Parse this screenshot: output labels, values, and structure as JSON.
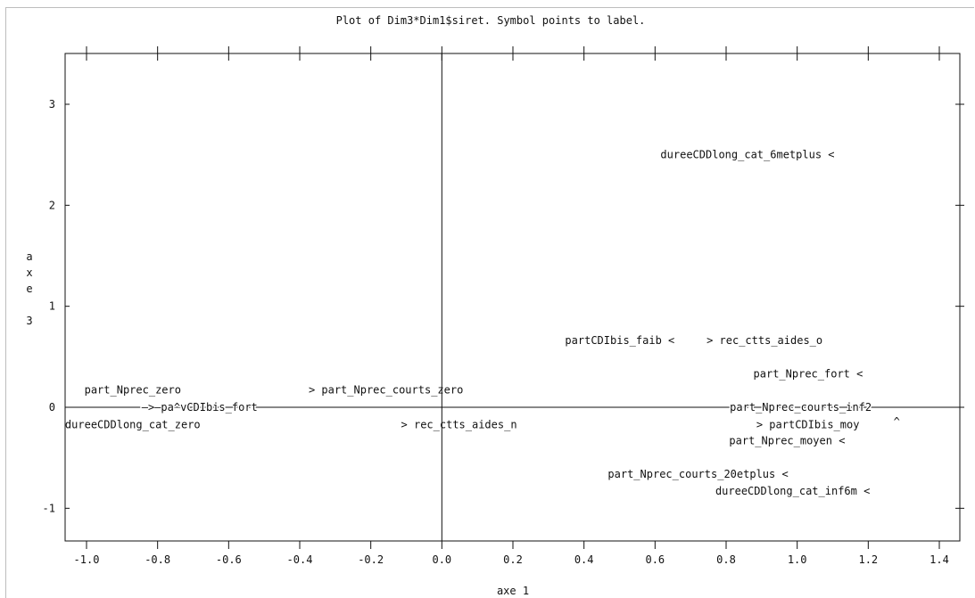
{
  "chart_data": {
    "type": "scatter",
    "title": "Plot of Dim3*Dim1$siret.  Symbol points to label.",
    "xlabel": "axe 1",
    "ylabel": "axe 3",
    "xlim": [
      -1.05,
      1.45
    ],
    "ylim": [
      -1.35,
      3.5
    ],
    "x_ticks": [
      "-1.0",
      "-0.8",
      "-0.6",
      "-0.4",
      "-0.2",
      "0.0",
      "0.2",
      "0.4",
      "0.6",
      "0.8",
      "1.0",
      "1.2",
      "1.4"
    ],
    "y_ticks": [
      "-1",
      "0",
      "1",
      "2",
      "3"
    ],
    "points": [
      {
        "label": "dureeCDDlong_cat_6metplus <",
        "x": 1.1,
        "y": 2.5
      },
      {
        "label": "partCDIbis_faib <",
        "x": 0.65,
        "y": 0.66
      },
      {
        "label": "> rec_ctts_aides_o",
        "x": 0.75,
        "y": 0.66
      },
      {
        "label": "part_Nprec_fort <",
        "x": 1.18,
        "y": 0.33
      },
      {
        "label": "part_Nprec_zero",
        "x": -0.87,
        "y": 0.17
      },
      {
        "label": "> part_Nprec_courts_zero",
        "x": -0.37,
        "y": 0.17
      },
      {
        "label": "—>—pa^vCDIbis_fort",
        "x": -0.84,
        "y": 0.0
      },
      {
        "label": "dureeCDDlong_cat_zero",
        "x": -0.87,
        "y": -0.17
      },
      {
        "label": "> rec_ctts_aides_n",
        "x": -0.11,
        "y": -0.17
      },
      {
        "label": "part_Nprec_courts_inf2",
        "x": 1.01,
        "y": 0.0
      },
      {
        "label": "> partCDIbis_moy",
        "x": 0.89,
        "y": -0.17
      },
      {
        "label": "^",
        "x": 1.28,
        "y": -0.14
      },
      {
        "label": "part_Nprec_moyen <",
        "x": 1.13,
        "y": -0.33
      },
      {
        "label": "part_Nprec_courts_20etplus <",
        "x": 0.97,
        "y": -0.66
      },
      {
        "label": "dureeCDDlong_cat_inf6m <",
        "x": 1.2,
        "y": -0.83
      }
    ]
  }
}
